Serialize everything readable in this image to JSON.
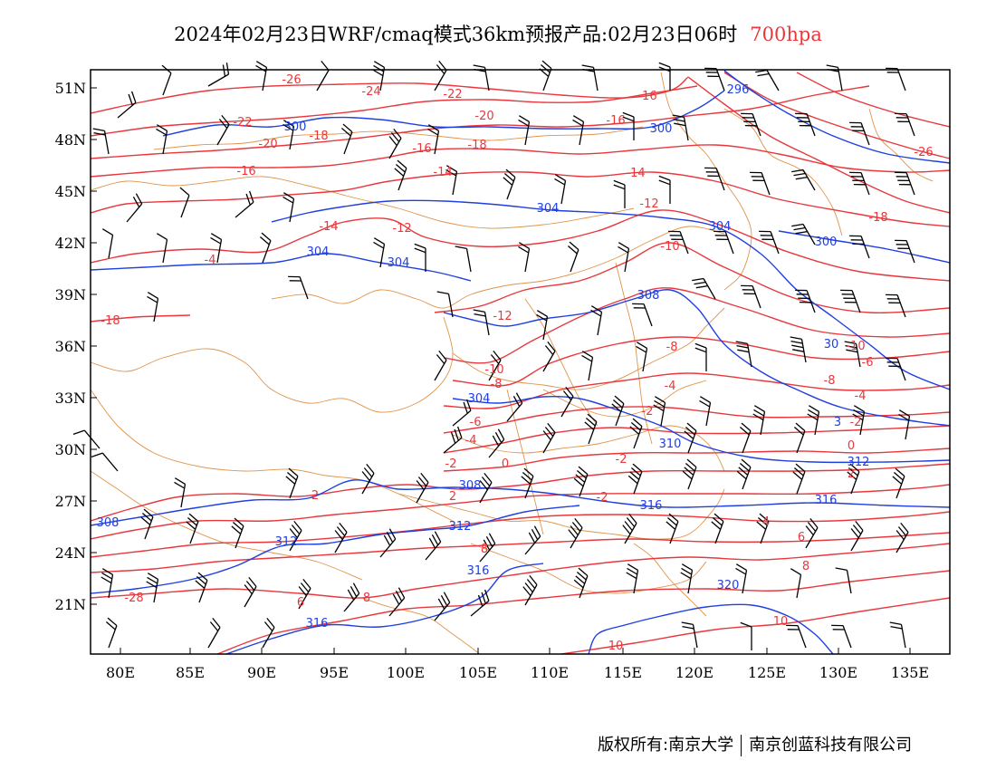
{
  "title": {
    "main": "2024年02月23日WRF/cmaq模式36km预报产品:02月23日06时",
    "level": "700hpa",
    "level_color": "#e8383d"
  },
  "axes": {
    "lon_labels": [
      "80E",
      "85E",
      "90E",
      "95E",
      "100E",
      "105E",
      "110E",
      "115E",
      "120E",
      "125E",
      "130E",
      "135E"
    ],
    "lat_labels": [
      "51N",
      "48N",
      "45N",
      "42N",
      "39N",
      "36N",
      "33N",
      "30N",
      "27N",
      "24N",
      "21N"
    ]
  },
  "colors": {
    "temperature_contour": "#e8383d",
    "geopotential_contour": "#1f3fe0",
    "boundary": "#e0944a",
    "wind_barb": "#000000"
  },
  "temperature_labels": [
    "-26",
    "-24",
    "-22",
    "-22",
    "-20",
    "-20",
    "-18",
    "-18",
    "-18",
    "-16",
    "-16",
    "-16",
    "-16",
    "-14",
    "-14",
    "-14",
    "-12",
    "-12",
    "-12",
    "-10",
    "-10",
    "-10",
    "-8",
    "-8",
    "-8",
    "-6",
    "-6",
    "-4",
    "-4",
    "-4",
    "-2",
    "-2",
    "-2",
    "-2",
    "0",
    "0",
    "2",
    "2",
    "2",
    "-2",
    "-4",
    "4",
    "6",
    "6",
    "8",
    "8",
    "8",
    "10",
    "10",
    "-26",
    "-18",
    "-28"
  ],
  "geopotential_labels": [
    "296",
    "300",
    "300",
    "300",
    "304",
    "304",
    "304",
    "304",
    "304",
    "308",
    "308",
    "308",
    "310",
    "312",
    "312",
    "312",
    "316",
    "316",
    "316",
    "316",
    "320",
    "30",
    "3"
  ],
  "footer": {
    "left": "版权所有:南京大学",
    "right": "南京创蓝科技有限公司"
  }
}
